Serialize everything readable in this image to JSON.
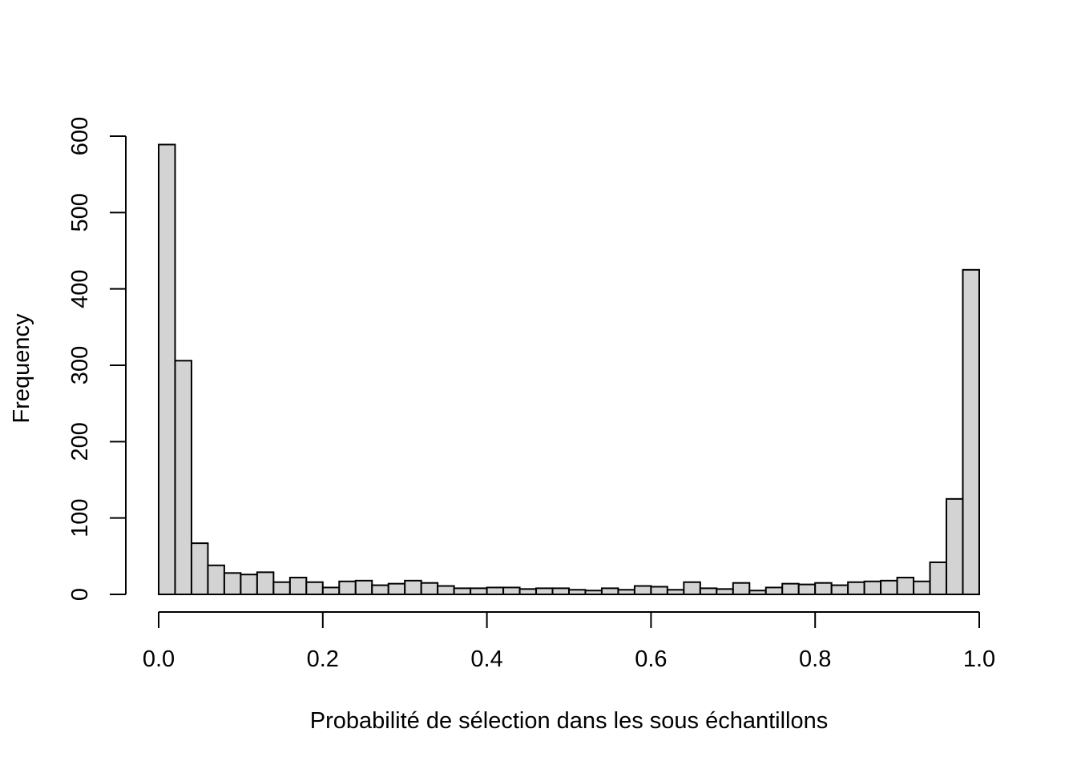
{
  "chart_data": {
    "type": "bar",
    "subtype": "histogram",
    "title": "",
    "xlabel": "Probabilité de sélection dans les sous échantillons",
    "ylabel": "Frequency",
    "bin_width": 0.02,
    "bins_start": 0.0,
    "values": [
      589,
      306,
      67,
      38,
      28,
      26,
      29,
      16,
      22,
      16,
      9,
      17,
      18,
      12,
      14,
      18,
      15,
      11,
      8,
      8,
      9,
      9,
      7,
      8,
      8,
      6,
      5,
      8,
      6,
      11,
      10,
      6,
      16,
      8,
      7,
      15,
      5,
      9,
      14,
      13,
      15,
      12,
      16,
      17,
      18,
      22,
      17,
      42,
      125,
      425
    ],
    "xlim": [
      0,
      1
    ],
    "ylim": [
      0,
      600
    ],
    "x_ticks": [
      "0.0",
      "0.2",
      "0.4",
      "0.6",
      "0.8",
      "1.0"
    ],
    "y_ticks": [
      "0",
      "100",
      "200",
      "300",
      "400",
      "500",
      "600"
    ],
    "bar_color": "#d3d3d3",
    "grid": false,
    "legend": "none"
  }
}
